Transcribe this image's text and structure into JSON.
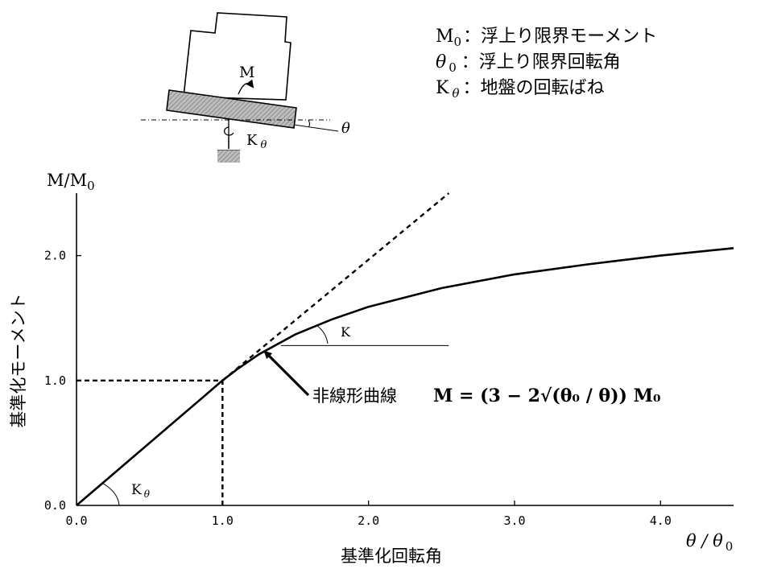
{
  "legend": [
    {
      "sym": "M",
      "sub": "0",
      "desc": "：浮上り限界モーメント"
    },
    {
      "sym": "θ",
      "sub": "0",
      "desc": "：浮上り限界回転角"
    },
    {
      "sym": "K",
      "sub": "θ",
      "desc": "：地盤の回転ばね"
    }
  ],
  "schematic": {
    "moment_label": "M",
    "spring_label": "K",
    "spring_sub": "θ",
    "angle_label": "θ"
  },
  "annotations": {
    "curve_label": "非線形曲線",
    "formula": "M = (3 − 2√(θ₀ / θ)) M₀",
    "slope_K": "K",
    "slope_Ktheta": "K",
    "slope_Ktheta_sub": "θ"
  },
  "chart_data": {
    "type": "line",
    "xlabel": "基準化回転角",
    "ylabel": "基準化モーメント",
    "x_axis_symbol": "θ / θ",
    "x_axis_symbol_sub": "0",
    "y_axis_symbol": "M/M",
    "y_axis_symbol_sub": "0",
    "xlim": [
      0,
      4.5
    ],
    "ylim": [
      0,
      2.5
    ],
    "xticks": [
      0.0,
      1.0,
      2.0,
      3.0,
      4.0
    ],
    "yticks": [
      0.0,
      1.0,
      2.0
    ],
    "xtick_labels": [
      "0.0",
      "1.0",
      "2.0",
      "3.0",
      "4.0"
    ],
    "ytick_labels": [
      "0.0",
      "1.0",
      "2.0"
    ],
    "grid": false,
    "series": [
      {
        "style": "solid",
        "x": [
          0,
          1.0,
          1.1,
          1.25,
          1.5,
          1.75,
          2.0,
          2.5,
          3.0,
          3.5,
          4.0,
          4.5
        ],
        "y": [
          0,
          1.0,
          1.09,
          1.21,
          1.37,
          1.49,
          1.59,
          1.74,
          1.85,
          1.93,
          2.0,
          2.06
        ]
      },
      {
        "style": "dashed",
        "x": [
          1.0,
          2.55
        ],
        "y": [
          1.0,
          2.5
        ]
      }
    ],
    "guide_lines": [
      {
        "x": [
          0,
          1.0
        ],
        "y": [
          1.0,
          1.0
        ]
      },
      {
        "x": [
          1.0,
          1.0
        ],
        "y": [
          0,
          1.0
        ]
      }
    ],
    "tangent_reference": {
      "x": [
        1.4,
        2.55
      ],
      "y": [
        1.28,
        1.28
      ]
    }
  }
}
